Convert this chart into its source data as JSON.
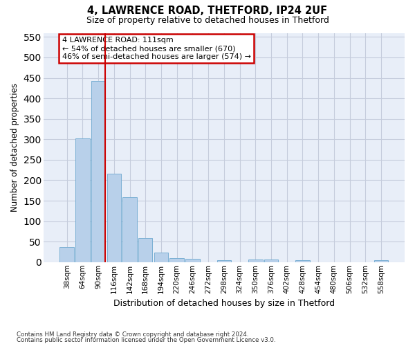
{
  "title1": "4, LAWRENCE ROAD, THETFORD, IP24 2UF",
  "title2": "Size of property relative to detached houses in Thetford",
  "xlabel": "Distribution of detached houses by size in Thetford",
  "ylabel": "Number of detached properties",
  "footnote1": "Contains HM Land Registry data © Crown copyright and database right 2024.",
  "footnote2": "Contains public sector information licensed under the Open Government Licence v3.0.",
  "bar_labels": [
    "38sqm",
    "64sqm",
    "90sqm",
    "116sqm",
    "142sqm",
    "168sqm",
    "194sqm",
    "220sqm",
    "246sqm",
    "272sqm",
    "298sqm",
    "324sqm",
    "350sqm",
    "376sqm",
    "402sqm",
    "428sqm",
    "454sqm",
    "480sqm",
    "506sqm",
    "532sqm",
    "558sqm"
  ],
  "bar_values": [
    36,
    303,
    443,
    216,
    158,
    59,
    24,
    10,
    8,
    0,
    4,
    0,
    6,
    6,
    0,
    5,
    0,
    0,
    0,
    0,
    4
  ],
  "bar_color": "#b8d0ea",
  "bar_edge_color": "#7aafd4",
  "bg_color": "#e8eef8",
  "grid_color": "#c5ccdc",
  "vline_color": "#cc0000",
  "annotation_text": "4 LAWRENCE ROAD: 111sqm\n← 54% of detached houses are smaller (670)\n46% of semi-detached houses are larger (574) →",
  "annotation_box_color": "#ffffff",
  "annotation_box_edge": "#cc0000",
  "ylim": [
    0,
    560
  ],
  "yticks": [
    0,
    50,
    100,
    150,
    200,
    250,
    300,
    350,
    400,
    450,
    500,
    550
  ]
}
